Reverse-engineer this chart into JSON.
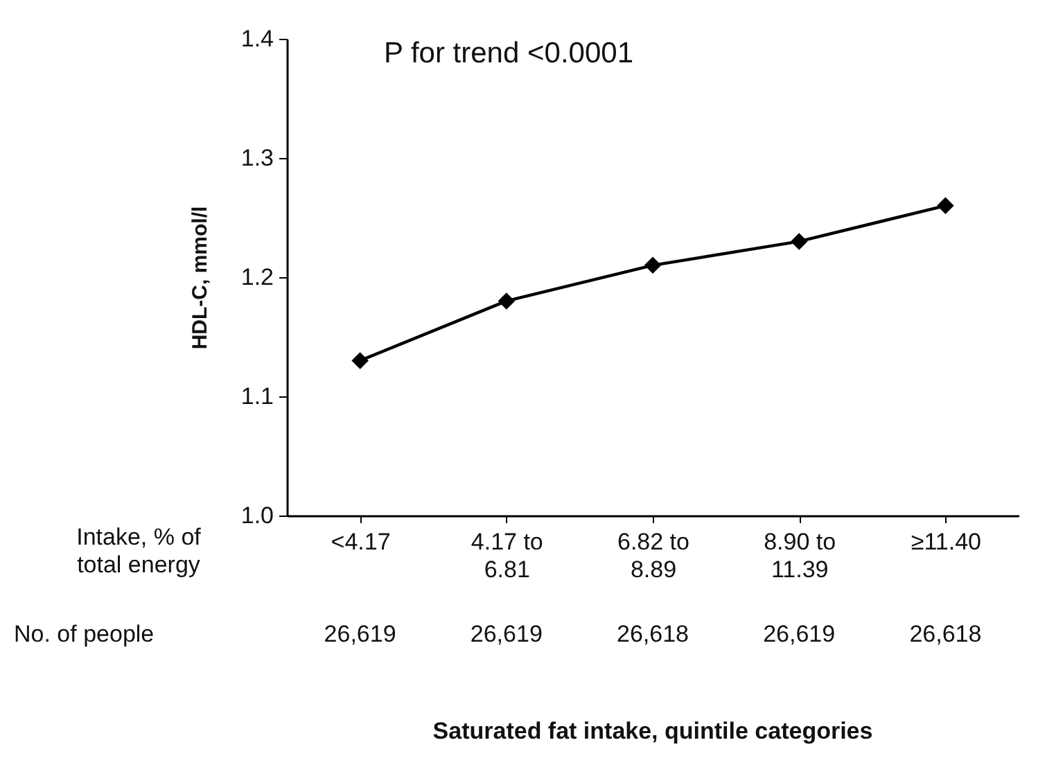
{
  "chart_data": {
    "type": "line",
    "ylabel": "HDL-C, mmol/l",
    "categories": [
      "<4.17",
      "4.17 to 6.81",
      "6.82 to 8.89",
      "8.90 to 11.39",
      "≥11.40"
    ],
    "series": [
      {
        "color": "#000000",
        "values": [
          1.13,
          1.18,
          1.21,
          1.23,
          1.26
        ]
      }
    ],
    "ylim": [
      1.0,
      1.4
    ],
    "yticks": [
      {
        "value": 1.0,
        "label": "1.0"
      },
      1.1,
      1.2,
      1.3,
      1.4
    ],
    "marker": "diamond",
    "line_style": "solid",
    "grid": false,
    "annotations": [
      "P for trend <0.0001",
      "Intake, % of total energy",
      "No. of people",
      "26,619",
      "26,619",
      "26,618",
      "26,619",
      "26,618",
      "Saturated fat intake, quintile categories"
    ]
  }
}
